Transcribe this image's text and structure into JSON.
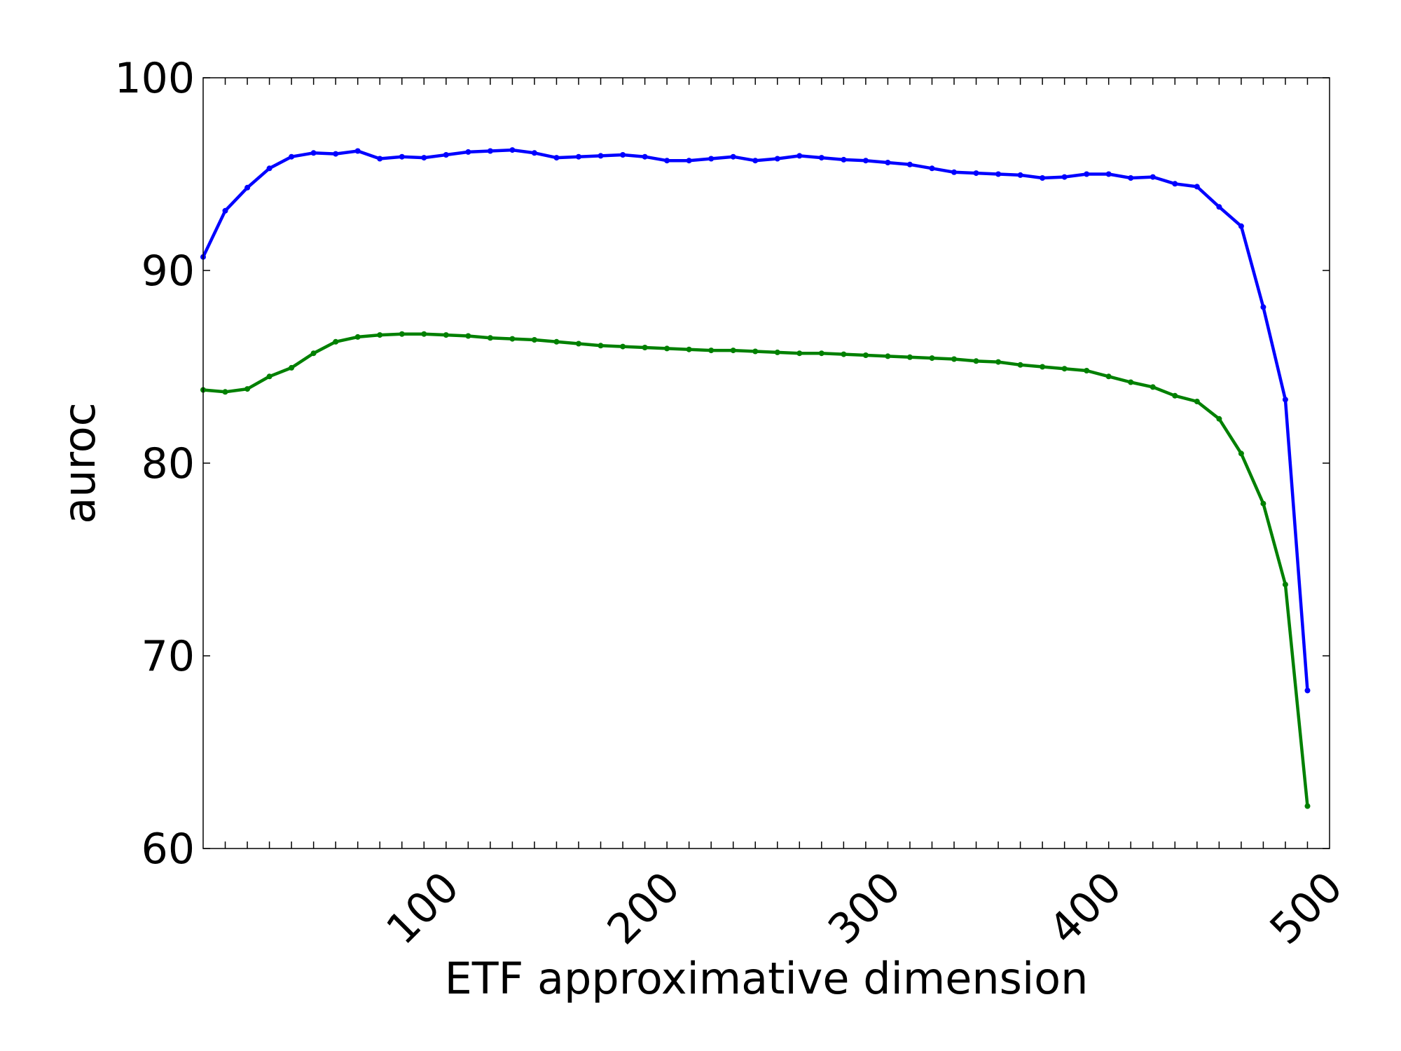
{
  "chart_data": {
    "type": "line",
    "title": "",
    "xlabel": "ETF approximative dimension",
    "ylabel": "auroc",
    "xlim": [
      0,
      510
    ],
    "ylim": [
      60,
      100
    ],
    "xticks": [
      100,
      200,
      300,
      400,
      500
    ],
    "yticks": [
      60,
      70,
      80,
      90,
      100
    ],
    "grid": false,
    "legend": "none",
    "x": [
      0,
      10,
      20,
      30,
      40,
      50,
      60,
      70,
      80,
      90,
      100,
      110,
      120,
      130,
      140,
      150,
      160,
      170,
      180,
      190,
      200,
      210,
      220,
      230,
      240,
      250,
      260,
      270,
      280,
      290,
      300,
      310,
      320,
      330,
      340,
      350,
      360,
      370,
      380,
      390,
      400,
      410,
      420,
      430,
      440,
      450,
      460,
      470,
      480,
      490,
      500
    ],
    "series": [
      {
        "color": "#0000ff",
        "values": [
          90.7,
          93.1,
          94.3,
          95.3,
          95.9,
          96.1,
          96.05,
          96.2,
          95.8,
          95.9,
          95.85,
          96.0,
          96.15,
          96.2,
          96.25,
          96.1,
          95.85,
          95.9,
          95.95,
          96.0,
          95.9,
          95.7,
          95.7,
          95.8,
          95.9,
          95.7,
          95.8,
          95.95,
          95.85,
          95.75,
          95.7,
          95.6,
          95.5,
          95.3,
          95.1,
          95.05,
          95.0,
          94.95,
          94.8,
          94.85,
          95.0,
          95.0,
          94.8,
          94.85,
          94.5,
          94.35,
          93.3,
          92.3,
          88.1,
          83.3,
          68.2
        ]
      },
      {
        "color": "#008000",
        "values": [
          83.8,
          83.7,
          83.85,
          84.5,
          84.95,
          85.7,
          86.3,
          86.55,
          86.65,
          86.7,
          86.7,
          86.65,
          86.6,
          86.5,
          86.45,
          86.4,
          86.3,
          86.2,
          86.1,
          86.05,
          86.0,
          85.95,
          85.9,
          85.85,
          85.85,
          85.8,
          85.75,
          85.7,
          85.7,
          85.65,
          85.6,
          85.55,
          85.5,
          85.45,
          85.4,
          85.3,
          85.25,
          85.1,
          85.0,
          84.9,
          84.8,
          84.5,
          84.2,
          83.95,
          83.5,
          83.2,
          82.3,
          80.5,
          77.9,
          73.7,
          62.2
        ]
      }
    ]
  }
}
